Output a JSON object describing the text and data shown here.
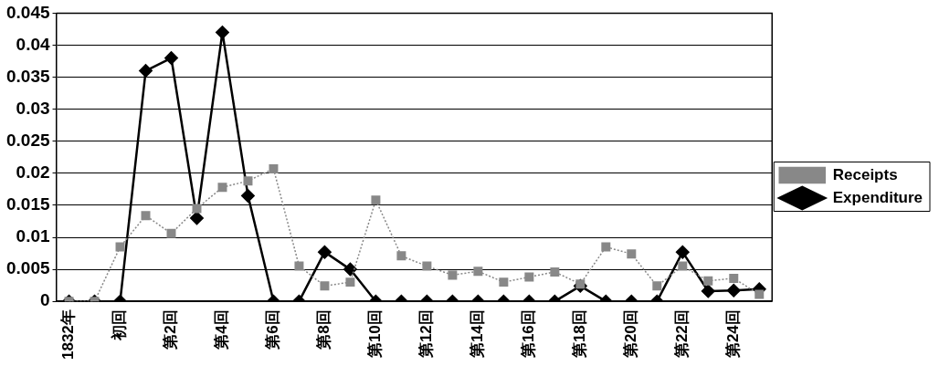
{
  "chart_data": {
    "type": "line",
    "categories": [
      "1832年",
      null,
      "初回",
      null,
      "第2回",
      null,
      "第4回",
      null,
      "第6回",
      null,
      "第8回",
      null,
      "第10回",
      null,
      "第12回",
      null,
      "第14回",
      null,
      "第16回",
      null,
      "第18回",
      null,
      "第20回",
      null,
      "第22回",
      null,
      "第24回",
      null
    ],
    "series": [
      {
        "name": "Expenditure",
        "color": "#000000",
        "marker": "diamond",
        "line_style": "solid",
        "values": [
          0,
          0,
          0,
          0.036,
          0.038,
          0.013,
          0.042,
          0.0165,
          0,
          0,
          0.0077,
          0.005,
          0,
          0,
          0,
          0,
          0,
          0,
          0,
          0,
          0.0024,
          0,
          0,
          0,
          0.0077,
          0.0016,
          0.0017,
          0.0019
        ]
      },
      {
        "name": "Receipts",
        "color": "#888888",
        "marker": "square",
        "line_style": "dotted",
        "values": [
          0,
          0,
          0.0085,
          0.0134,
          0.0106,
          0.0145,
          0.0178,
          0.0188,
          0.0207,
          0.0055,
          0.0024,
          0.003,
          0.0158,
          0.0071,
          0.0055,
          0.0041,
          0.0047,
          0.003,
          0.0038,
          0.0046,
          0.0027,
          0.0085,
          0.0074,
          0.0024,
          0.0055,
          0.0032,
          0.0036,
          0.0011
        ]
      }
    ],
    "ylim": [
      0,
      0.045
    ],
    "yticks": [
      0,
      0.005,
      0.01,
      0.015,
      0.02,
      0.025,
      0.03,
      0.035,
      0.04,
      0.045
    ],
    "grid": "y",
    "legend": "right"
  }
}
